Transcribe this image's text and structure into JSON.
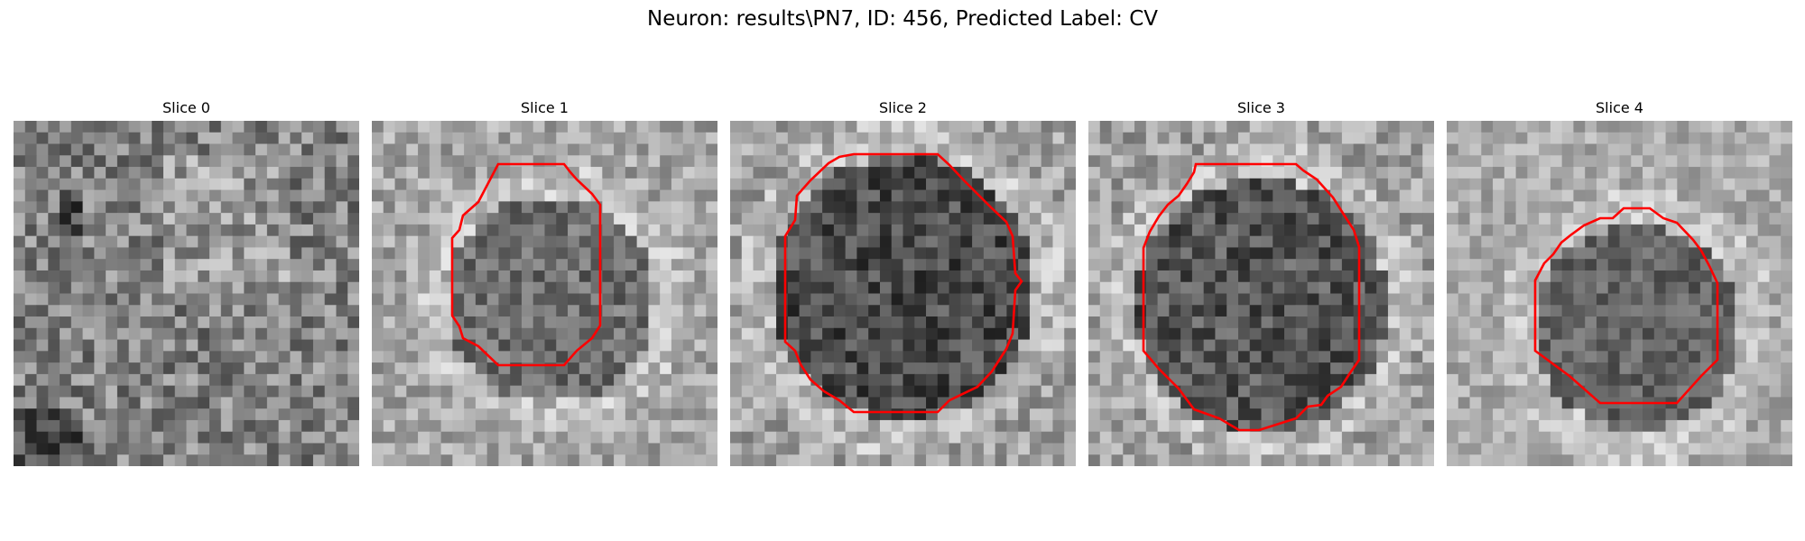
{
  "figure": {
    "title": "Neuron: results\\PN7, ID: 456, Predicted Label: CV",
    "contour_color": "#ff0000",
    "colormap": "grayscale",
    "grid_size": 30
  },
  "slices": [
    {
      "label": "Slice 0",
      "has_contour": false
    },
    {
      "label": "Slice 1",
      "has_contour": true
    },
    {
      "label": "Slice 2",
      "has_contour": true
    },
    {
      "label": "Slice 3",
      "has_contour": true
    },
    {
      "label": "Slice 4",
      "has_contour": true
    }
  ]
}
